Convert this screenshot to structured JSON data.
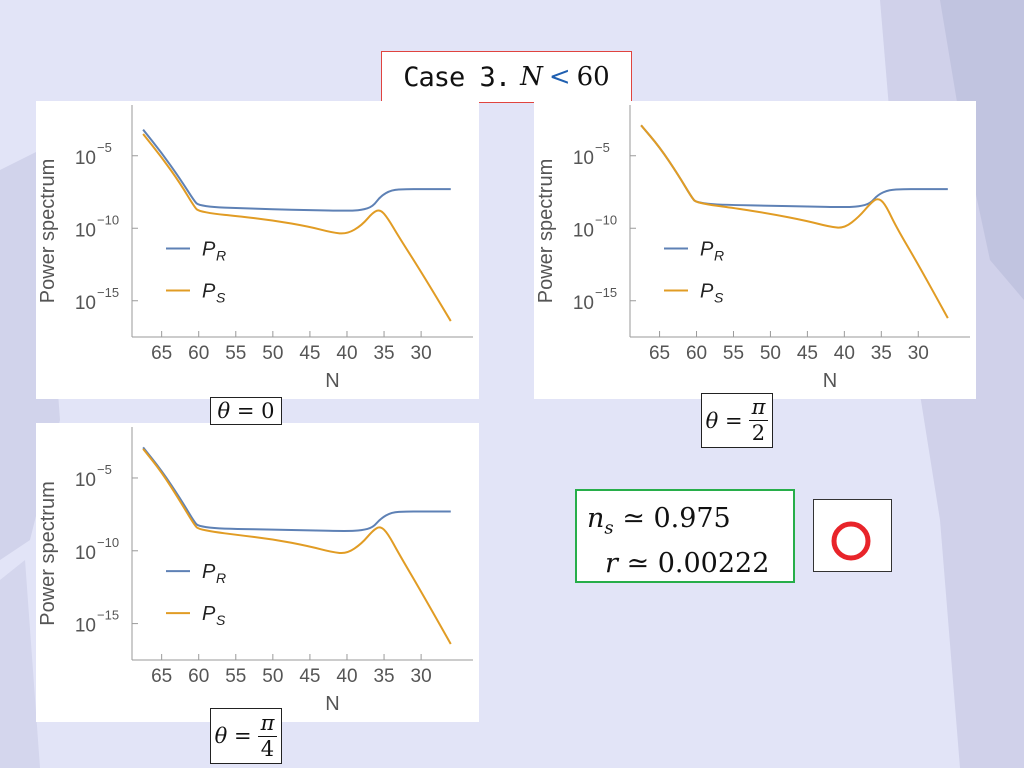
{
  "title": {
    "prefix": "Case 3.",
    "var": "N",
    "op": "<",
    "value": "60"
  },
  "colors": {
    "P_R": "#5e81b5",
    "P_S": "#e19c24",
    "title_border": "#e0443f",
    "result_border": "#27ae4a",
    "mark": "#e8242a"
  },
  "results": {
    "ns_lhs": "n",
    "ns_sub": "s",
    "ns_value": "≃ 0.975",
    "r_lhs": "r",
    "r_value": "≃ 0.00222"
  },
  "mark_symbol": "circle-mark",
  "chart_data": [
    {
      "type": "line",
      "panel": "top-left",
      "theta_label": {
        "lhs": "θ",
        "eq": "=",
        "value": "0"
      },
      "xlabel": "N",
      "ylabel": "Power spectrum",
      "x_reversed": true,
      "xlim": [
        69,
        23
      ],
      "ylim_log10": [
        -17.5,
        -1.5
      ],
      "xticks": [
        65,
        60,
        55,
        50,
        45,
        40,
        35,
        30
      ],
      "yticks_labels": [
        "10",
        "10",
        "10"
      ],
      "yticks_exponents": [
        "−5",
        "−10",
        "−15"
      ],
      "yticks_log10": [
        -5,
        -10,
        -15
      ],
      "legend": {
        "position": "lower-left",
        "entries": [
          "P",
          "P"
        ],
        "subscripts": [
          "R",
          "S"
        ]
      },
      "series": [
        {
          "name": "P_R",
          "color": "#5e81b5",
          "x": [
            67.5,
            65,
            62.5,
            60.5,
            60,
            58,
            55,
            50,
            45,
            40,
            38,
            36.5,
            35.5,
            34,
            32,
            30,
            26
          ],
          "log10y": [
            -3.2,
            -4.8,
            -6.6,
            -8.2,
            -8.4,
            -8.55,
            -8.6,
            -8.7,
            -8.75,
            -8.8,
            -8.75,
            -8.5,
            -7.8,
            -7.35,
            -7.3,
            -7.3,
            -7.3
          ]
        },
        {
          "name": "P_S",
          "color": "#e19c24",
          "x": [
            67.5,
            65,
            62.5,
            60.5,
            60,
            58,
            55,
            50,
            45,
            42,
            40,
            38,
            36.5,
            35.5,
            34.5,
            33,
            30,
            26
          ],
          "log10y": [
            -3.5,
            -5.1,
            -6.9,
            -8.6,
            -8.8,
            -9.0,
            -9.15,
            -9.45,
            -9.9,
            -10.3,
            -10.4,
            -9.8,
            -8.9,
            -8.7,
            -9.3,
            -10.6,
            -13.0,
            -16.4
          ]
        }
      ]
    },
    {
      "type": "line",
      "panel": "top-right",
      "theta_label": {
        "lhs": "θ",
        "eq": "=",
        "num": "π",
        "den": "2"
      },
      "xlabel": "N",
      "ylabel": "Power spectrum",
      "x_reversed": true,
      "xlim": [
        69,
        23
      ],
      "ylim_log10": [
        -17.5,
        -1.5
      ],
      "xticks": [
        65,
        60,
        55,
        50,
        45,
        40,
        35,
        30
      ],
      "yticks_labels": [
        "10",
        "10",
        "10"
      ],
      "yticks_exponents": [
        "−5",
        "−10",
        "−15"
      ],
      "yticks_log10": [
        -5,
        -10,
        -15
      ],
      "legend": {
        "position": "lower-left",
        "entries": [
          "P",
          "P"
        ],
        "subscripts": [
          "R",
          "S"
        ]
      },
      "series": [
        {
          "name": "P_R",
          "color": "#5e81b5",
          "x": [
            67.5,
            65,
            62.5,
            60.5,
            60,
            58,
            55,
            50,
            45,
            40,
            38,
            36.5,
            35.5,
            34,
            32,
            30,
            26
          ],
          "log10y": [
            -2.9,
            -4.4,
            -6.3,
            -8.0,
            -8.2,
            -8.35,
            -8.4,
            -8.45,
            -8.5,
            -8.55,
            -8.5,
            -8.3,
            -7.7,
            -7.35,
            -7.3,
            -7.3,
            -7.3
          ]
        },
        {
          "name": "P_S",
          "color": "#e19c24",
          "x": [
            67.5,
            65,
            62.5,
            60.5,
            60,
            58,
            55,
            50,
            45,
            42,
            40,
            38,
            36.5,
            35.5,
            34.5,
            33,
            30,
            26
          ],
          "log10y": [
            -2.9,
            -4.4,
            -6.3,
            -8.0,
            -8.2,
            -8.4,
            -8.6,
            -9.0,
            -9.5,
            -9.9,
            -10.0,
            -9.2,
            -8.3,
            -7.9,
            -8.3,
            -9.9,
            -12.5,
            -16.2
          ]
        }
      ]
    },
    {
      "type": "line",
      "panel": "bottom-left",
      "theta_label": {
        "lhs": "θ",
        "eq": "=",
        "num": "π",
        "den": "4"
      },
      "xlabel": "N",
      "ylabel": "Power spectrum",
      "x_reversed": true,
      "xlim": [
        69,
        23
      ],
      "ylim_log10": [
        -17.5,
        -1.5
      ],
      "xticks": [
        65,
        60,
        55,
        50,
        45,
        40,
        35,
        30
      ],
      "yticks_labels": [
        "10",
        "10",
        "10"
      ],
      "yticks_exponents": [
        "−5",
        "−10",
        "−15"
      ],
      "yticks_log10": [
        -5,
        -10,
        -15
      ],
      "legend": {
        "position": "lower-left",
        "entries": [
          "P",
          "P"
        ],
        "subscripts": [
          "R",
          "S"
        ]
      },
      "series": [
        {
          "name": "P_R",
          "color": "#5e81b5",
          "x": [
            67.5,
            65,
            62.5,
            60.5,
            60,
            58,
            55,
            50,
            45,
            40,
            38,
            36.5,
            35.5,
            34,
            32,
            30,
            26
          ],
          "log10y": [
            -2.9,
            -4.5,
            -6.4,
            -8.1,
            -8.3,
            -8.45,
            -8.5,
            -8.55,
            -8.6,
            -8.65,
            -8.6,
            -8.4,
            -7.8,
            -7.35,
            -7.3,
            -7.3,
            -7.3
          ]
        },
        {
          "name": "P_S",
          "color": "#e19c24",
          "x": [
            67.5,
            65,
            62.5,
            60.5,
            60,
            58,
            55,
            50,
            45,
            42,
            40,
            38,
            36.5,
            35.5,
            34.5,
            33,
            30,
            26
          ],
          "log10y": [
            -3.0,
            -4.6,
            -6.6,
            -8.3,
            -8.5,
            -8.7,
            -8.9,
            -9.2,
            -9.7,
            -10.1,
            -10.2,
            -9.5,
            -8.6,
            -8.3,
            -8.8,
            -10.2,
            -12.8,
            -16.4
          ]
        }
      ]
    }
  ]
}
